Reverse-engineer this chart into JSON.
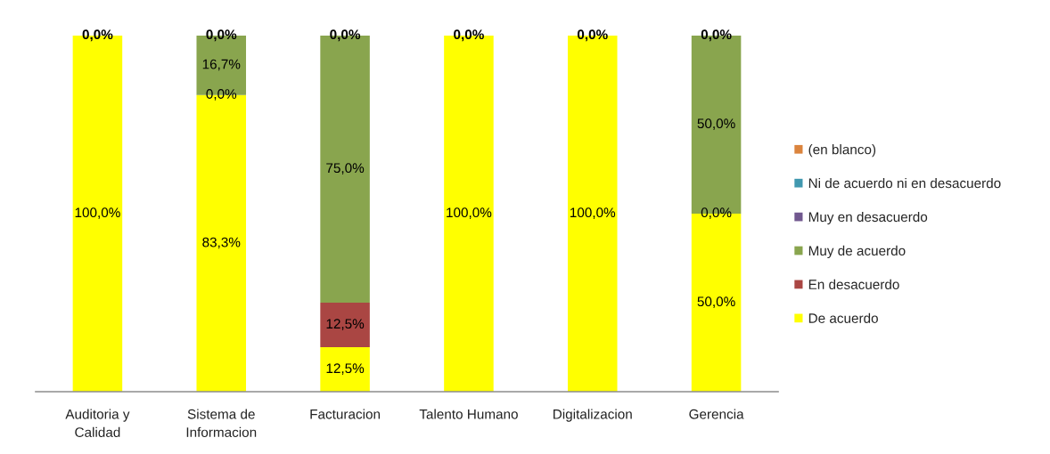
{
  "chart_data": {
    "type": "bar",
    "stacked": true,
    "categories": [
      "Auditoria y Calidad",
      "Sistema de Informacion",
      "Facturacion",
      "Talento Humano",
      "Digitalizacion",
      "Gerencia"
    ],
    "ylim": [
      0,
      100
    ],
    "tick_labels": "x",
    "grid": false,
    "legend": "right",
    "series": [
      {
        "name": "De acuerdo",
        "color": "#ffff00",
        "values": [
          100,
          83.3,
          12.5,
          100,
          100,
          50
        ],
        "value_labels": [
          "100,0%",
          "83,3%",
          "12,5%",
          "100,0%",
          "100,0%",
          "50,0%"
        ]
      },
      {
        "name": "En desacuerdo",
        "color": "#aa4643",
        "values": [
          0,
          0,
          12.5,
          0,
          0,
          0
        ],
        "value_labels": [
          null,
          null,
          "12,5%",
          null,
          null,
          null
        ]
      },
      {
        "name": "Muy de acuerdo",
        "color": "#89a54e",
        "values": [
          0,
          16.7,
          75,
          0,
          0,
          50
        ],
        "value_labels": [
          null,
          "16,7%",
          "75,0%",
          null,
          null,
          "50,0%"
        ]
      },
      {
        "name": "Muy en desacuerdo",
        "color": "#71588f",
        "values": [
          0,
          0,
          0,
          0,
          0,
          0
        ],
        "value_labels": [
          null,
          null,
          null,
          null,
          null,
          null
        ]
      },
      {
        "name": "Ni de acuerdo ni en desacuerdo",
        "color": "#4198af",
        "values": [
          0,
          0,
          0,
          0,
          0,
          0
        ],
        "value_labels": [
          null,
          null,
          null,
          null,
          null,
          null
        ]
      },
      {
        "name": "(en blanco)",
        "color": "#db843d",
        "values": [
          0,
          0,
          0,
          0,
          0,
          0
        ],
        "value_labels": [
          "0,0%",
          "0,0%",
          "0,0%",
          "0,0%",
          "0,0%",
          "0,0%"
        ]
      }
    ],
    "annotations": [
      {
        "text": "0,0%",
        "x": "Sistema de Informacion",
        "y": 83.3
      },
      {
        "text": "0,0%",
        "x": "Gerencia",
        "y": 50
      }
    ]
  }
}
